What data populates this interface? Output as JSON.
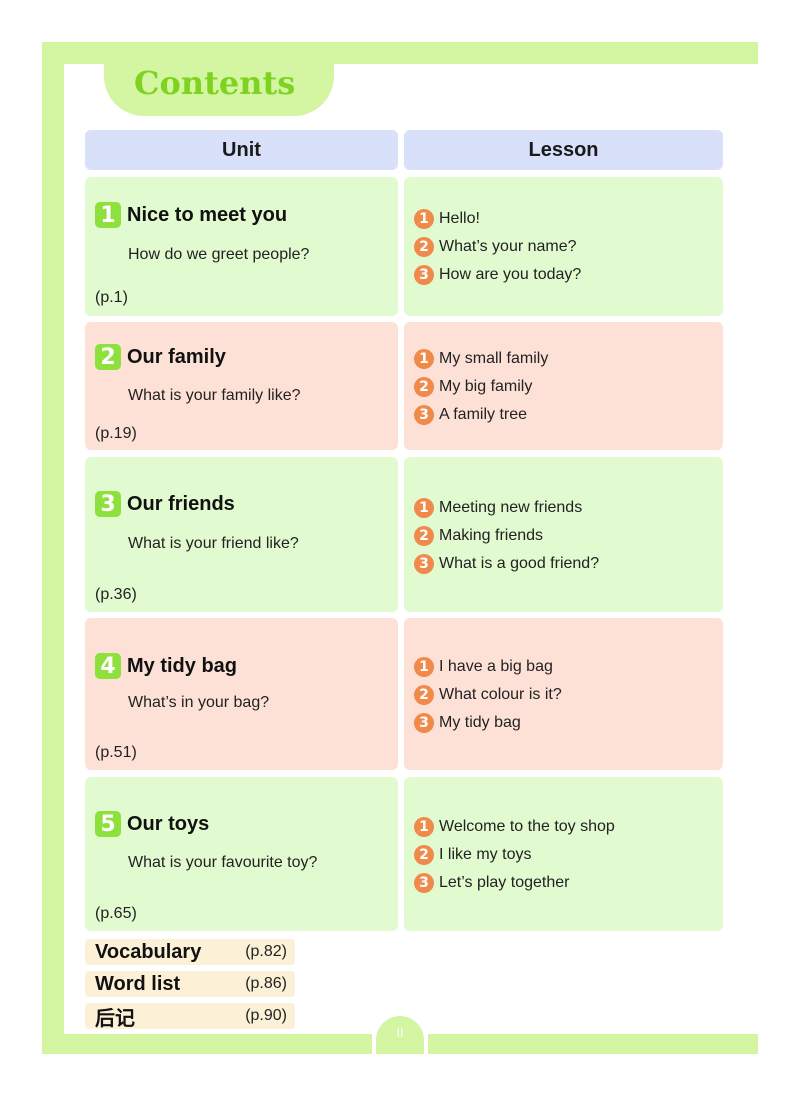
{
  "title": "Contents",
  "headers": {
    "unit": "Unit",
    "lesson": "Lesson"
  },
  "units": [
    {
      "number": "1",
      "title": "Nice to meet you",
      "question": "How do we greet people?",
      "page": "(p.1)",
      "lessons": [
        {
          "number": "1",
          "title": "Hello!"
        },
        {
          "number": "2",
          "title": "What’s your name?"
        },
        {
          "number": "3",
          "title": "How are you today?"
        }
      ]
    },
    {
      "number": "2",
      "title": "Our family",
      "question": "What is your family like?",
      "page": "(p.19)",
      "lessons": [
        {
          "number": "1",
          "title": "My small family"
        },
        {
          "number": "2",
          "title": "My big family"
        },
        {
          "number": "3",
          "title": "A family tree"
        }
      ]
    },
    {
      "number": "3",
      "title": "Our friends",
      "question": "What is your friend like?",
      "page": "(p.36)",
      "lessons": [
        {
          "number": "1",
          "title": "Meeting new friends"
        },
        {
          "number": "2",
          "title": "Making friends"
        },
        {
          "number": "3",
          "title": "What is a good friend?"
        }
      ]
    },
    {
      "number": "4",
      "title": "My tidy bag",
      "question": "What’s in your bag?",
      "page": "(p.51)",
      "lessons": [
        {
          "number": "1",
          "title": "I have a big bag"
        },
        {
          "number": "2",
          "title": "What colour is it?"
        },
        {
          "number": "3",
          "title": "My tidy bag"
        }
      ]
    },
    {
      "number": "5",
      "title": "Our toys",
      "question": "What is your favourite toy?",
      "page": "(p.65)",
      "lessons": [
        {
          "number": "1",
          "title": "Welcome to the toy shop"
        },
        {
          "number": "2",
          "title": "I like my toys"
        },
        {
          "number": "3",
          "title": "Let’s play together"
        }
      ]
    }
  ],
  "extras": [
    {
      "label": "Vocabulary",
      "page": "(p.82)"
    },
    {
      "label": "Word list",
      "page": "(p.86)"
    },
    {
      "label": "后记",
      "page": "(p.90)"
    }
  ],
  "page_number": "II",
  "colors": {
    "frame": "#d4f5a2",
    "title": "#7ed321",
    "header": "#d8e0fa",
    "green_row": "#e1fad0",
    "pink_row": "#fde1d6",
    "unit_badge": "#8ee03c",
    "lesson_badge": "#f08a4b",
    "extra_bg": "#fcf1d6"
  }
}
